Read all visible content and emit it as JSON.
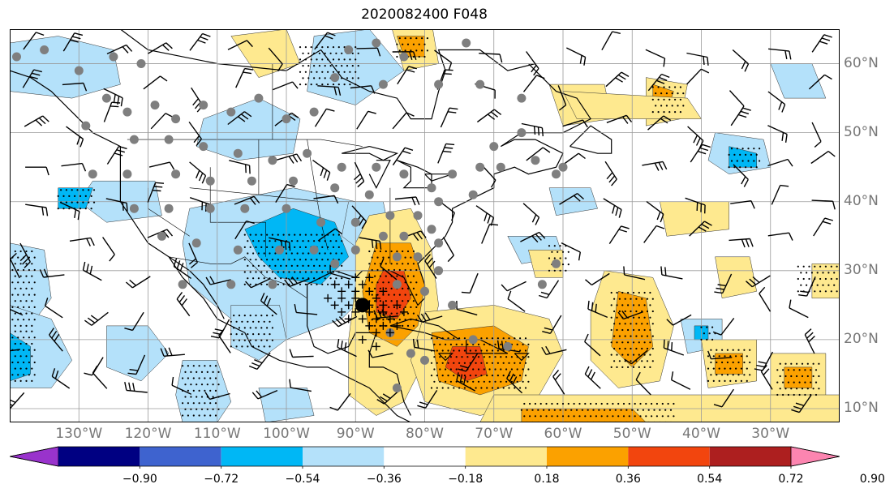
{
  "title": "2020082400 F048",
  "map": {
    "lon_range": [
      -140,
      -20
    ],
    "lat_range": [
      8,
      65
    ],
    "lat_labels": [
      {
        "lat": 60,
        "text": "60°N"
      },
      {
        "lat": 50,
        "text": "50°N"
      },
      {
        "lat": 40,
        "text": "40°N"
      },
      {
        "lat": 30,
        "text": "30°N"
      },
      {
        "lat": 20,
        "text": "20°N"
      },
      {
        "lat": 10,
        "text": "10°N"
      }
    ],
    "lon_labels": [
      {
        "lon": -130,
        "text": "130°W"
      },
      {
        "lon": -120,
        "text": "120°W"
      },
      {
        "lon": -110,
        "text": "110°W"
      },
      {
        "lon": -100,
        "text": "100°W"
      },
      {
        "lon": -90,
        "text": "90°W"
      },
      {
        "lon": -80,
        "text": "80°W"
      },
      {
        "lon": -70,
        "text": "70°W"
      },
      {
        "lon": -60,
        "text": "60°W"
      },
      {
        "lon": -50,
        "text": "50°W"
      },
      {
        "lon": -40,
        "text": "40°W"
      },
      {
        "lon": -30,
        "text": "30°W"
      }
    ],
    "storm_center": {
      "lon": -89,
      "lat": 25
    },
    "colors": {
      "pos_1": "#fee98f",
      "pos_2": "#fba100",
      "pos_3": "#f2450e",
      "pos_4": "#ad1f1f",
      "neg_1": "#b4e1fa",
      "neg_2": "#00b7f5",
      "neg_3": "#3e63cf",
      "neg_4": "#000082"
    }
  },
  "colorbar": {
    "ticks": [
      "−0.90",
      "−0.72",
      "−0.54",
      "−0.36",
      "−0.18",
      "0.18",
      "0.36",
      "0.54",
      "0.72",
      "0.90"
    ],
    "colors": [
      "#9933cc",
      "#000082",
      "#3e63cf",
      "#00b7f5",
      "#b4e1fa",
      "#ffffff",
      "#fee98f",
      "#fba100",
      "#f2450e",
      "#ad1f1f",
      "#fc85b0"
    ]
  }
}
